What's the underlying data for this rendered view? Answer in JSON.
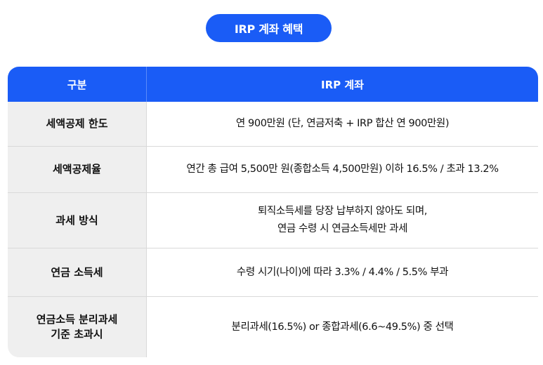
{
  "badge": {
    "title": "IRP 계좌 혜택"
  },
  "table": {
    "headers": [
      "구분",
      "IRP 계좌"
    ],
    "rows": [
      {
        "label": "세액공제 한도",
        "value": "연 900만원 (단, 연금저축 + IRP 합산 연 900만원)"
      },
      {
        "label": "세액공제율",
        "value": "연간 총 급여 5,500만 원(종합소득 4,500만원) 이하 16.5% / 초과 13.2%"
      },
      {
        "label": "과세 방식",
        "value": "퇴직소득세를 당장 납부하지 않아도 되며,\n연금 수령 시 연금소득세만 과세"
      },
      {
        "label": "연금 소득세",
        "value": "수령 시기(나이)에 따라 3.3% / 4.4% / 5.5% 부과"
      },
      {
        "label": "연금소득 분리과세\n기준 초과시",
        "value": "분리과세(16.5%) or 종합과세(6.6~49.5%) 중 선택"
      }
    ]
  },
  "colors": {
    "accent": "#1a5cf6",
    "label_bg": "#efefef",
    "border": "#d9d9d9"
  }
}
